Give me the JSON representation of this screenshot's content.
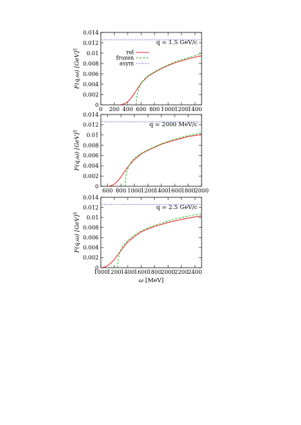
{
  "chart_data": [
    {
      "type": "line",
      "annotation": "q = 1.5 GeV/c",
      "xlabel": "",
      "ylabel": "F(q,ω) [GeV]^3",
      "xlim": [
        0,
        1500
      ],
      "ylim": [
        0,
        0.014
      ],
      "xticks": [
        0,
        200,
        400,
        600,
        800,
        1000,
        1200,
        1400
      ],
      "yticks": [
        0,
        0.002,
        0.004,
        0.006,
        0.008,
        0.01,
        0.012,
        0.014
      ],
      "legend": {
        "position": "top-right",
        "entries": [
          "rel",
          "frozen",
          "asym"
        ]
      },
      "series": [
        {
          "name": "rel",
          "color": "#e03030",
          "style": "solid",
          "x": [
            280,
            350,
            400,
            450,
            500,
            550,
            600,
            700,
            800,
            900,
            1000,
            1100,
            1200,
            1300,
            1400,
            1500
          ],
          "y": [
            0,
            0.0002,
            0.0006,
            0.0013,
            0.0022,
            0.0032,
            0.0042,
            0.0055,
            0.0063,
            0.007,
            0.0076,
            0.0081,
            0.0085,
            0.0089,
            0.0092,
            0.0095
          ]
        },
        {
          "name": "frozen",
          "color": "#22bb22",
          "style": "dashed",
          "x": [
            525,
            535,
            550,
            575,
            600,
            650,
            700,
            800,
            900,
            1000,
            1100,
            1200,
            1300,
            1400,
            1500
          ],
          "y": [
            0,
            0.0015,
            0.0025,
            0.0034,
            0.0041,
            0.005,
            0.0056,
            0.0064,
            0.0071,
            0.0077,
            0.0083,
            0.0087,
            0.0091,
            0.0095,
            0.0099
          ]
        },
        {
          "name": "asym",
          "color": "#4444cc",
          "style": "dotted",
          "x": [
            0,
            1500
          ],
          "y": [
            0.01257,
            0.01257
          ]
        }
      ]
    },
    {
      "type": "line",
      "annotation": "q = 2000 MeV/c",
      "xlabel": "",
      "ylabel": "F(q,ω) [GeV]^3",
      "xlim": [
        500,
        2000
      ],
      "ylim": [
        0,
        0.014
      ],
      "xticks": [
        600,
        800,
        1000,
        1200,
        1400,
        1600,
        1800,
        2000
      ],
      "yticks": [
        0,
        0.002,
        0.004,
        0.006,
        0.008,
        0.01,
        0.012,
        0.014
      ],
      "series": [
        {
          "name": "rel",
          "color": "#e03030",
          "style": "solid",
          "x": [
            600,
            650,
            700,
            750,
            800,
            850,
            900,
            950,
            1000,
            1100,
            1200,
            1300,
            1400,
            1600,
            1800,
            2000
          ],
          "y": [
            0,
            0.0001,
            0.0004,
            0.001,
            0.0018,
            0.0028,
            0.0037,
            0.0045,
            0.0052,
            0.0063,
            0.007,
            0.0076,
            0.0082,
            0.009,
            0.0097,
            0.0101
          ]
        },
        {
          "name": "frozen",
          "color": "#22bb22",
          "style": "dashed",
          "x": [
            860,
            870,
            890,
            920,
            950,
            1000,
            1100,
            1200,
            1300,
            1400,
            1600,
            1800,
            2000
          ],
          "y": [
            0,
            0.0018,
            0.003,
            0.004,
            0.0047,
            0.0055,
            0.0064,
            0.0071,
            0.0077,
            0.0083,
            0.0092,
            0.0099,
            0.0104
          ]
        },
        {
          "name": "asym",
          "color": "#4444cc",
          "style": "dotted",
          "x": [
            500,
            2000
          ],
          "y": [
            0.01257,
            0.01257
          ]
        }
      ]
    },
    {
      "type": "line",
      "annotation": "q = 2.5 GeV/c",
      "xlabel": "ω [MeV]",
      "ylabel": "F(q,ω) [GeV]^3",
      "xlim": [
        1000,
        2500
      ],
      "ylim": [
        0,
        0.014
      ],
      "xticks": [
        1000,
        1200,
        1400,
        1600,
        1800,
        2000,
        2200,
        2400
      ],
      "yticks": [
        0,
        0.002,
        0.004,
        0.006,
        0.008,
        0.01,
        0.012,
        0.014
      ],
      "series": [
        {
          "name": "rel",
          "color": "#e03030",
          "style": "solid",
          "x": [
            1000,
            1050,
            1100,
            1150,
            1200,
            1250,
            1300,
            1350,
            1400,
            1500,
            1600,
            1700,
            1800,
            2000,
            2200,
            2400,
            2500
          ],
          "y": [
            0,
            0.0001,
            0.0004,
            0.0009,
            0.0016,
            0.0025,
            0.0034,
            0.0043,
            0.0051,
            0.0062,
            0.0071,
            0.0077,
            0.0082,
            0.009,
            0.0096,
            0.0101,
            0.0103
          ]
        },
        {
          "name": "frozen",
          "color": "#22bb22",
          "style": "dashed",
          "x": [
            1250,
            1260,
            1280,
            1310,
            1350,
            1400,
            1500,
            1600,
            1700,
            1800,
            2000,
            2200,
            2400,
            2500
          ],
          "y": [
            0,
            0.0017,
            0.0029,
            0.0039,
            0.0047,
            0.0054,
            0.0065,
            0.0073,
            0.0079,
            0.0084,
            0.0093,
            0.01,
            0.0105,
            0.0107
          ]
        },
        {
          "name": "asym",
          "color": "#4444cc",
          "style": "dotted",
          "x": [
            1000,
            2500
          ],
          "y": [
            0.01257,
            0.01257
          ]
        }
      ]
    }
  ]
}
